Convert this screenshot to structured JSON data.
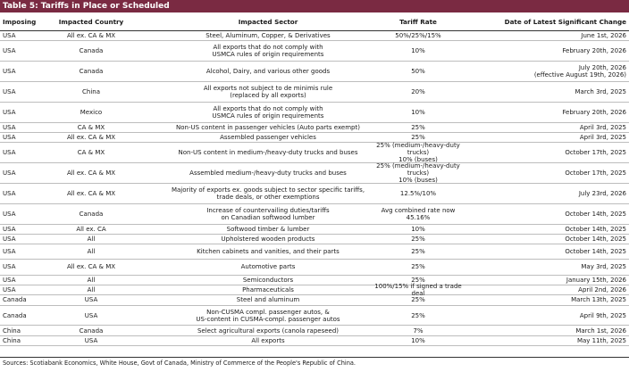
{
  "title": "Table 5: Tariffs in Place or Scheduled",
  "headers": [
    "Imposing",
    "Impacted Country",
    "Impacted Sector",
    "Tariff Rate",
    "Date of Latest Significant Change"
  ],
  "rows": [
    {
      "imposing": "USA",
      "country": "All ex. CA & MX",
      "sector": "Steel, Aluminum, Copper, & Derivatives",
      "rate": "50%/25%/15%",
      "date": "June 1st, 2026",
      "h": 1
    },
    {
      "imposing": "USA",
      "country": "Canada",
      "sector": "All exports that do not comply with\nUSMCA rules of origin requirements",
      "rate": "10%",
      "date": "February 20th, 2026",
      "h": 2
    },
    {
      "imposing": "USA",
      "country": "Canada",
      "sector": "Alcohol, Dairy, and various other goods",
      "rate": "50%",
      "date": "July 20th, 2026\n(effective August 19th, 2026)",
      "h": 2
    },
    {
      "imposing": "USA",
      "country": "China",
      "sector": "All exports not subject to de minimis rule\n(replaced by all exports)",
      "rate": "20%",
      "date": "March 3rd, 2025",
      "h": 2
    },
    {
      "imposing": "USA",
      "country": "Mexico",
      "sector": "All exports that do not comply with\nUSMCA rules of origin requirements",
      "rate": "10%",
      "date": "February 20th, 2026",
      "h": 2
    },
    {
      "imposing": "USA",
      "country": "CA & MX",
      "sector": "Non-US content in passenger vehicles (Auto parts exempt)",
      "rate": "25%",
      "date": "April 3rd, 2025",
      "h": 1
    },
    {
      "imposing": "USA",
      "country": "All ex. CA & MX",
      "sector": "Assembled passenger vehicles",
      "rate": "25%",
      "date": "April 3rd, 2025",
      "h": 1
    },
    {
      "imposing": "USA",
      "country": "CA & MX",
      "sector": "Non-US content in medium-/heavy-duty trucks and buses",
      "rate": "25% (medium-/heavy-duty trucks)\n10% (buses)",
      "date": "October 17th, 2025",
      "h": 2
    },
    {
      "imposing": "USA",
      "country": "All ex. CA & MX",
      "sector": "Assembled medium-/heavy-duty trucks and buses",
      "rate": "25% (medium-/heavy-duty trucks)\n10% (buses)",
      "date": "October 17th, 2025",
      "h": 2
    },
    {
      "imposing": "USA",
      "country": "All ex. CA & MX",
      "sector": "Majority of exports ex. goods subject to sector specific tariffs,\ntrade deals, or other exemptions",
      "rate": "12.5%/10%",
      "date": "July 23rd, 2026",
      "h": 2
    },
    {
      "imposing": "USA",
      "country": "Canada",
      "sector": "Increase of countervailing duties/tariffs\non Canadian softwood lumber",
      "rate": "Avg combined rate now 45.16%",
      "date": "October 14th, 2025",
      "h": 2
    },
    {
      "imposing": "USA",
      "country": "All ex. CA",
      "sector": "Softwood timber & lumber",
      "rate": "10%",
      "date": "October 14th, 2025",
      "h": 1
    },
    {
      "imposing": "USA",
      "country": "All",
      "sector": "Upholstered wooden products",
      "rate": "25%",
      "date": "October 14th, 2025",
      "h": 1
    },
    {
      "imposing": "USA",
      "country": "All",
      "sector": "Kitchen cabinets and vanities, and their parts",
      "rate": "25%",
      "date": "October 14th, 2025",
      "h": 1.5
    },
    {
      "imposing": "USA",
      "country": "All ex. CA & MX",
      "sector": "Automotive parts",
      "rate": "25%",
      "date": "May 3rd, 2025",
      "h": 1.5
    },
    {
      "imposing": "USA",
      "country": "All",
      "sector": "Semiconductors",
      "rate": "25%",
      "date": "January 15th, 2026",
      "h": 1
    },
    {
      "imposing": "USA",
      "country": "All",
      "sector": "Pharmaceuticals",
      "rate": "100%/15% if signed a trade deal",
      "date": "April 2nd, 2026",
      "h": 1
    },
    {
      "imposing": "Canada",
      "country": "USA",
      "sector": "Steel and aluminum",
      "rate": "25%",
      "date": "March 13th, 2025",
      "h": 1
    },
    {
      "imposing": "Canada",
      "country": "USA",
      "sector": "Non-CUSMA compl. passenger autos, &\nUS-content in CUSMA-compl. passenger autos",
      "rate": "25%",
      "date": "April 9th, 2025",
      "h": 2
    },
    {
      "imposing": "China",
      "country": "Canada",
      "sector": "Select agricultural exports (canola rapeseed)",
      "rate": "7%",
      "date": "March 1st, 2026",
      "h": 1
    },
    {
      "imposing": "China",
      "country": "USA",
      "sector": "All exports",
      "rate": "10%",
      "date": "May 11th, 2025",
      "h": 1
    }
  ],
  "source": "Sources: Scotiabank Economics, White House, Govt of Canada, Ministry of Commerce of the People's Republic of China.",
  "colors": {
    "title_bg": "#7a2a42",
    "title_text": "#ffffff"
  }
}
